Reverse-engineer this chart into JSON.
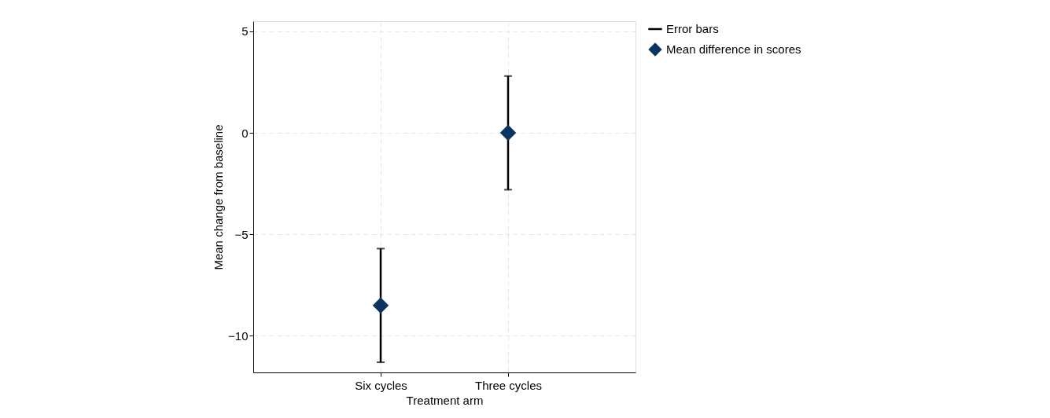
{
  "chart_data": {
    "type": "scatter",
    "xlabel": "Treatment arm",
    "ylabel": "Mean change from baseline",
    "categories": [
      "Six cycles",
      "Three cycles"
    ],
    "series": [
      {
        "name": "Mean difference in scores",
        "color": "#0b3461",
        "values": [
          -8.5,
          0
        ],
        "errors": [
          2.8,
          2.8
        ]
      }
    ],
    "annotations": [
      "Error bars"
    ],
    "marker": "diamond",
    "ylim": [
      -11.8,
      5.5
    ],
    "yticks": [
      5,
      0,
      -5,
      -10
    ],
    "grid": true,
    "legend": "right"
  }
}
